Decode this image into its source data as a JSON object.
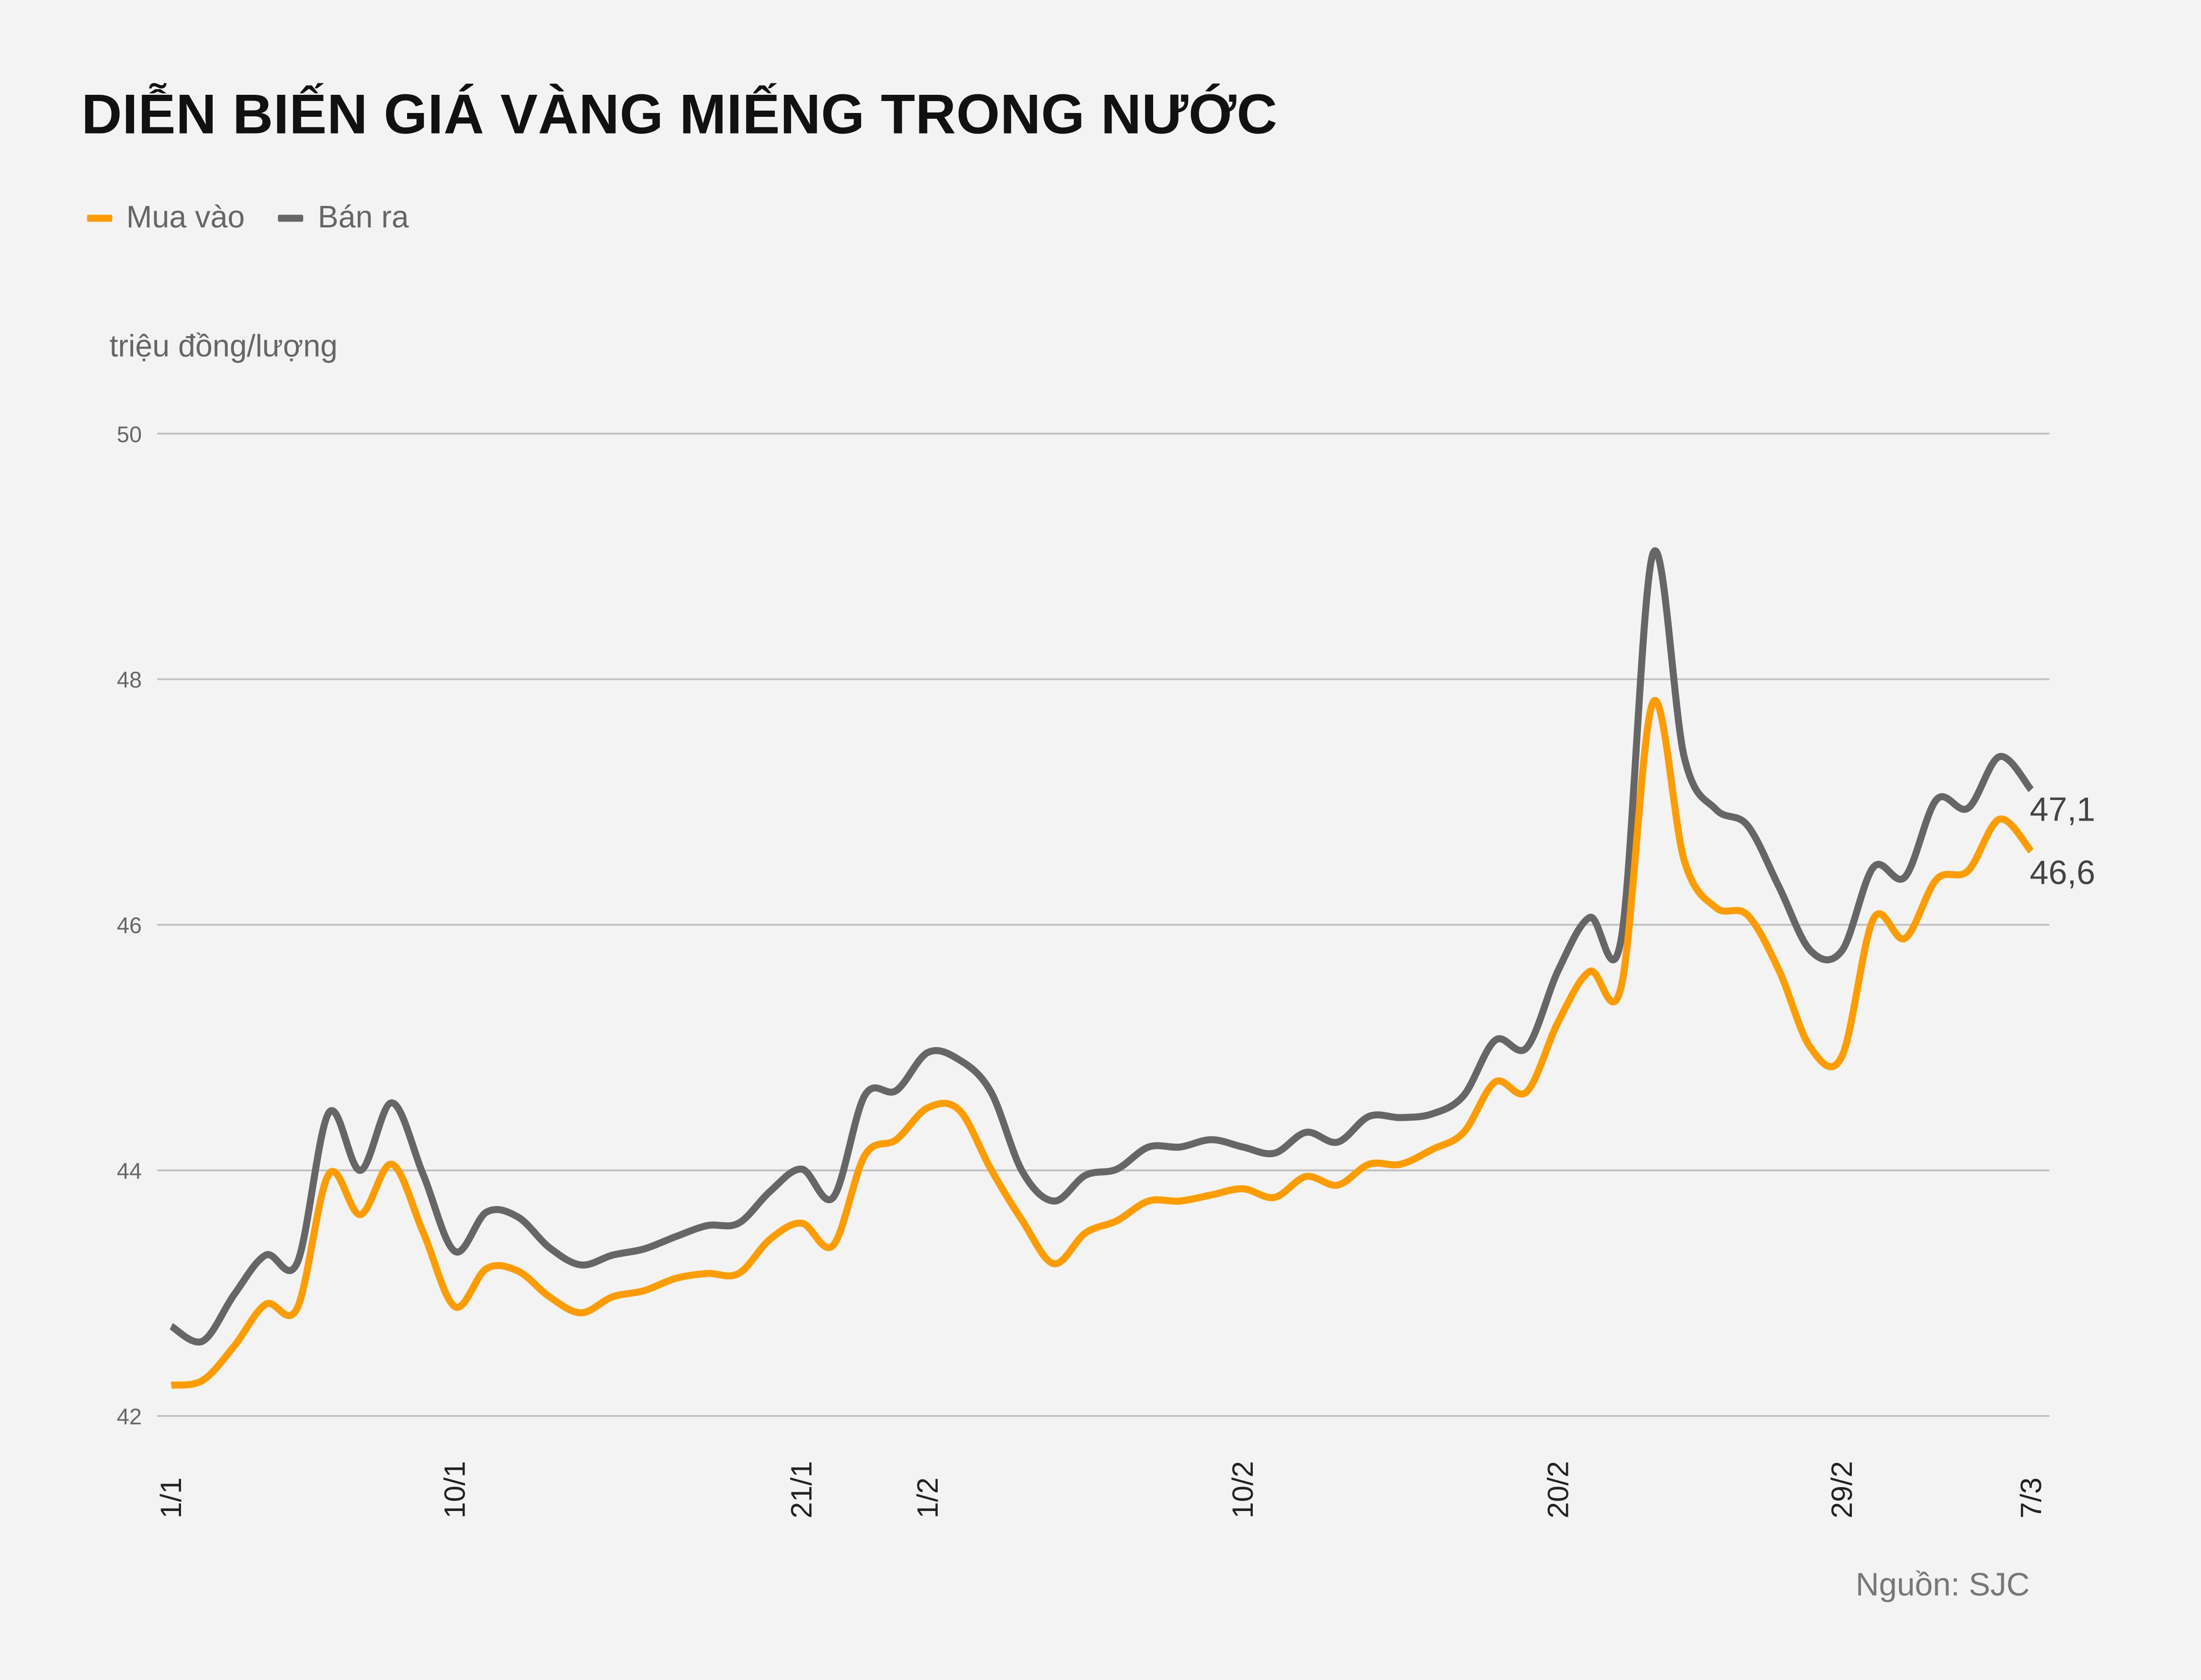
{
  "title": "DIỄN BIẾN GIÁ VÀNG MIẾNG TRONG NƯỚC",
  "unit_label": "triệu đồng/lượng",
  "source": "Nguồn: SJC",
  "colors": {
    "mua_vao": "#FF9C00",
    "ban_ra": "#666666",
    "background": "#F3F3F3",
    "grid": "#C0C0C0"
  },
  "chart_data": {
    "type": "line",
    "ylim": [
      42,
      50
    ],
    "yticks": [
      "42",
      "44",
      "46",
      "48",
      "50"
    ],
    "ytick_values": [
      42,
      44,
      46,
      48,
      50
    ],
    "grid": "horizontal",
    "legend": "top-left",
    "x_tick_labels": [
      {
        "index": 0,
        "label": "1/1"
      },
      {
        "index": 9,
        "label": "10/1"
      },
      {
        "index": 20,
        "label": "21/1"
      },
      {
        "index": 24,
        "label": "1/2"
      },
      {
        "index": 34,
        "label": "10/2"
      },
      {
        "index": 44,
        "label": "20/2"
      },
      {
        "index": 53,
        "label": "29/2"
      },
      {
        "index": 59,
        "label": "7/3"
      }
    ],
    "series": [
      {
        "name": "Mua vào",
        "key": "mua_vao",
        "end_label": "46,6",
        "values": [
          42.25,
          42.29,
          42.57,
          42.91,
          42.88,
          43.97,
          43.64,
          44.05,
          43.49,
          42.89,
          43.2,
          43.18,
          42.97,
          42.84,
          42.97,
          43.02,
          43.12,
          43.16,
          43.16,
          43.44,
          43.57,
          43.39,
          44.12,
          44.25,
          44.51,
          44.49,
          44.01,
          43.59,
          43.24,
          43.49,
          43.59,
          43.75,
          43.75,
          43.8,
          43.85,
          43.78,
          43.95,
          43.88,
          44.05,
          44.05,
          44.17,
          44.31,
          44.72,
          44.64,
          45.21,
          45.62,
          45.5,
          47.81,
          46.52,
          46.14,
          46.08,
          45.63,
          45.0,
          44.93,
          46.05,
          45.89,
          46.37,
          46.44,
          46.86,
          46.6
        ]
      },
      {
        "name": "Bán ra",
        "key": "ban_ra",
        "end_label": "47,1",
        "values": [
          42.73,
          42.61,
          42.99,
          43.31,
          43.25,
          44.47,
          44.0,
          44.55,
          43.96,
          43.34,
          43.66,
          43.62,
          43.37,
          43.23,
          43.31,
          43.36,
          43.46,
          43.55,
          43.57,
          43.83,
          44.01,
          43.78,
          44.61,
          44.65,
          44.96,
          44.9,
          44.64,
          43.99,
          43.75,
          43.96,
          44.01,
          44.19,
          44.19,
          44.25,
          44.19,
          44.14,
          44.31,
          44.23,
          44.44,
          44.43,
          44.46,
          44.61,
          45.06,
          45.0,
          45.63,
          46.06,
          45.89,
          49.02,
          47.36,
          46.94,
          46.81,
          46.31,
          45.79,
          45.79,
          46.47,
          46.39,
          47.02,
          46.95,
          47.37,
          47.1
        ]
      }
    ]
  }
}
